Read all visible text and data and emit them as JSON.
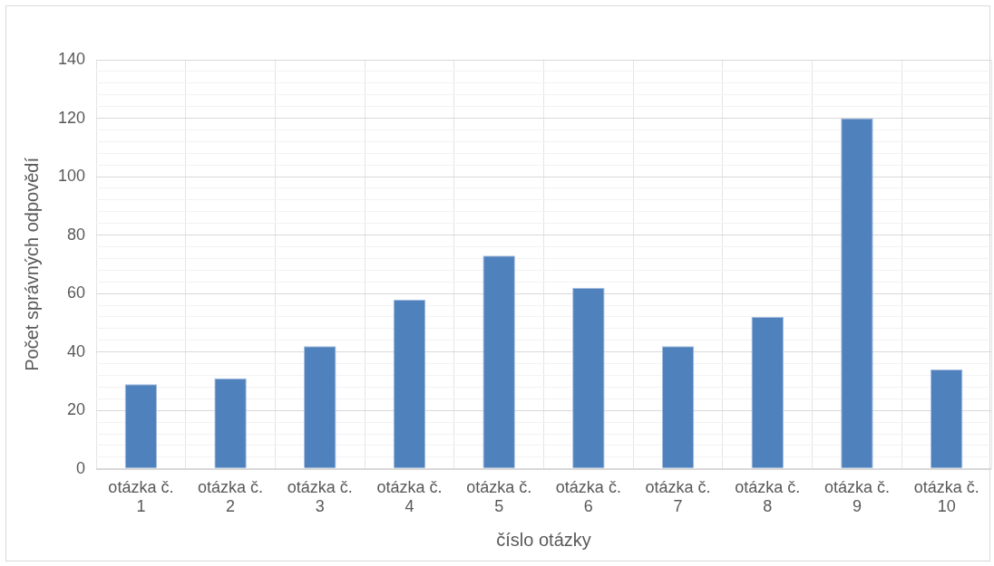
{
  "chart_data": {
    "type": "bar",
    "xlabel": "číslo otázky",
    "ylabel": "Počet správných odpovědí",
    "categories": [
      "otázka č. 1",
      "otázka č. 2",
      "otázka č. 3",
      "otázka č. 4",
      "otázka č. 5",
      "otázka č. 6",
      "otázka č. 7",
      "otázka č. 8",
      "otázka č. 9",
      "otázka č. 10"
    ],
    "values": [
      29,
      31,
      42,
      58,
      73,
      62,
      42,
      52,
      120,
      34
    ],
    "color": "#4f81bd",
    "ylim": [
      0,
      140
    ],
    "yticks": [
      0,
      {
        "value": 4,
        "label": null
      },
      {
        "value": 8,
        "label": null
      },
      {
        "value": 12,
        "label": null
      },
      {
        "value": 16,
        "label": null
      },
      20,
      {
        "value": 24,
        "label": null
      },
      {
        "value": 28,
        "label": null
      },
      {
        "value": 32,
        "label": null
      },
      {
        "value": 36,
        "label": null
      },
      40,
      {
        "value": 44,
        "label": null
      },
      {
        "value": 48,
        "label": null
      },
      {
        "value": 52,
        "label": null
      },
      {
        "value": 56,
        "label": null
      },
      60,
      {
        "value": 64,
        "label": null
      },
      {
        "value": 68,
        "label": null
      },
      {
        "value": 72,
        "label": null
      },
      {
        "value": 76,
        "label": null
      },
      80,
      {
        "value": 84,
        "label": null
      },
      {
        "value": 88,
        "label": null
      },
      {
        "value": 92,
        "label": null
      },
      {
        "value": 96,
        "label": null
      },
      100,
      {
        "value": 104,
        "label": null
      },
      {
        "value": 108,
        "label": null
      },
      {
        "value": 112,
        "label": null
      },
      {
        "value": 116,
        "label": null
      },
      120,
      {
        "value": 124,
        "label": null
      },
      {
        "value": 128,
        "label": null
      },
      {
        "value": 132,
        "label": null
      },
      {
        "value": 136,
        "label": null
      },
      140
    ],
    "grid": true,
    "legend": false
  }
}
